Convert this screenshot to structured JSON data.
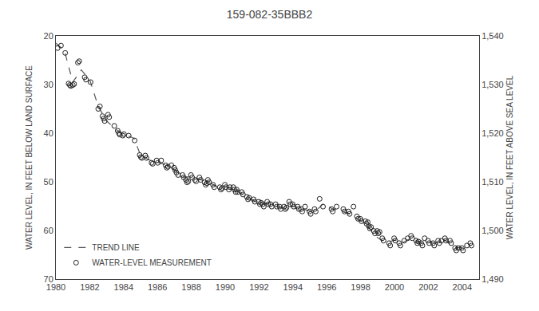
{
  "chart_data": {
    "type": "scatter",
    "title": "159-082-35BBB2",
    "ylabel": "WATER LEVEL, IN FEET BELOW LAND SURFACE",
    "y2label": "WATER LEVEL, IN FEET ABOVE SEA LEVEL",
    "xlim": [
      1980,
      2005
    ],
    "xticks": [
      1980,
      1982,
      1984,
      1986,
      1988,
      1990,
      1992,
      1994,
      1996,
      1998,
      2000,
      2002,
      2004
    ],
    "ylim": [
      70,
      20
    ],
    "yticks": [
      20,
      30,
      40,
      50,
      60,
      70
    ],
    "y2lim": [
      1490,
      1540
    ],
    "y2ticks": [
      {
        "value": 1540,
        "label": "1,540"
      },
      {
        "value": 1530,
        "label": "1,530"
      },
      {
        "value": 1520,
        "label": "1,520"
      },
      {
        "value": 1510,
        "label": "1,510"
      },
      {
        "value": 1500,
        "label": "1,500"
      },
      {
        "value": 1490,
        "label": "1,490"
      }
    ],
    "grid": false,
    "legend": "lower left",
    "series": [
      {
        "name": "TREND LINE",
        "type": "line",
        "line_style": "dashed",
        "color": "#555555",
        "x": [
          1980.0,
          1980.5,
          1981.0,
          1981.5,
          1982.0,
          1982.5,
          1983.0,
          1983.5,
          1983.8,
          1984.2,
          1984.6,
          1985.0,
          1985.5,
          1986.0,
          1986.5,
          1987.0,
          1987.5,
          1988.0,
          1988.5,
          1989.0,
          1989.5,
          1990.0,
          1990.5,
          1991.0,
          1991.5,
          1992.0,
          1992.5,
          1993.0,
          1993.5,
          1994.0,
          1994.5,
          1995.0,
          1995.5,
          1995.8,
          1996.3,
          1996.8,
          1997.3,
          1997.7,
          1998.0,
          1998.5,
          1999.0,
          1999.5,
          2000.0,
          2000.5,
          2001.0,
          2001.5,
          2002.0,
          2002.5,
          2003.0,
          2003.5,
          2004.0,
          2004.5
        ],
        "values": [
          21.5,
          23.0,
          29.5,
          27.0,
          29.0,
          34.5,
          37.5,
          39.0,
          40.0,
          40.5,
          41.0,
          44.5,
          45.5,
          46.0,
          46.5,
          47.5,
          49.0,
          49.0,
          49.5,
          50.0,
          51.0,
          51.0,
          51.5,
          52.5,
          53.5,
          54.5,
          54.5,
          55.0,
          55.5,
          55.0,
          55.5,
          56.0,
          55.5,
          54.5,
          55.5,
          56.0,
          56.5,
          57.5,
          58.0,
          59.5,
          61.5,
          62.5,
          62.0,
          62.5,
          61.5,
          62.5,
          62.5,
          62.5,
          62.0,
          63.5,
          63.5,
          63.0
        ]
      },
      {
        "name": "WATER-LEVEL MEASUREMENT",
        "type": "scatter",
        "marker": "open_circle",
        "color": "#222222",
        "x": [
          1980.1,
          1980.3,
          1980.55,
          1980.75,
          1980.82,
          1980.88,
          1981.0,
          1981.08,
          1981.3,
          1981.38,
          1981.7,
          1981.78,
          1982.05,
          1982.5,
          1982.6,
          1982.75,
          1982.82,
          1982.88,
          1983.08,
          1983.15,
          1983.45,
          1983.65,
          1983.72,
          1983.78,
          1983.95,
          1984.02,
          1984.3,
          1984.65,
          1984.95,
          1985.02,
          1985.08,
          1985.28,
          1985.35,
          1985.65,
          1985.72,
          1985.95,
          1986.02,
          1986.22,
          1986.48,
          1986.55,
          1986.62,
          1986.82,
          1986.98,
          1987.05,
          1987.12,
          1987.22,
          1987.48,
          1987.55,
          1987.68,
          1987.75,
          1987.82,
          1987.98,
          1988.05,
          1988.22,
          1988.28,
          1988.48,
          1988.55,
          1988.78,
          1988.85,
          1988.92,
          1988.98,
          1989.05,
          1989.28,
          1989.35,
          1989.68,
          1989.75,
          1989.82,
          1989.98,
          1990.05,
          1990.22,
          1990.28,
          1990.48,
          1990.55,
          1990.62,
          1990.68,
          1990.75,
          1990.98,
          1991.05,
          1991.28,
          1991.35,
          1991.42,
          1991.68,
          1991.75,
          1991.98,
          1992.05,
          1992.12,
          1992.22,
          1992.28,
          1992.48,
          1992.55,
          1992.68,
          1992.75,
          1992.98,
          1993.05,
          1993.22,
          1993.28,
          1993.48,
          1993.55,
          1993.62,
          1993.78,
          1993.85,
          1993.98,
          1994.05,
          1994.28,
          1994.35,
          1994.48,
          1994.55,
          1994.72,
          1994.98,
          1995.05,
          1995.28,
          1995.35,
          1995.58,
          1995.78,
          1996.28,
          1996.35,
          1996.58,
          1996.98,
          1997.05,
          1997.28,
          1997.35,
          1997.58,
          1997.78,
          1997.85,
          1997.98,
          1998.05,
          1998.28,
          1998.35,
          1998.42,
          1998.48,
          1998.55,
          1998.62,
          1998.78,
          1998.85,
          1998.98,
          1999.05,
          1999.12,
          1999.28,
          1999.35,
          1999.68,
          1999.75,
          1999.98,
          2000.05,
          2000.28,
          2000.35,
          2000.58,
          2000.78,
          2000.98,
          2001.05,
          2001.28,
          2001.35,
          2001.42,
          2001.58,
          2001.65,
          2001.78,
          2001.98,
          2002.05,
          2002.28,
          2002.35,
          2002.58,
          2002.65,
          2002.78,
          2002.98,
          2003.05,
          2003.28,
          2003.35,
          2003.58,
          2003.65,
          2003.78,
          2003.98,
          2004.05,
          2004.28,
          2004.48,
          2004.55
        ],
        "values": [
          22.5,
          22.0,
          23.5,
          29.8,
          30.1,
          30.3,
          30.1,
          29.9,
          25.5,
          25.2,
          28.5,
          29.0,
          29.5,
          35.0,
          34.5,
          36.5,
          37.0,
          37.5,
          36.2,
          36.7,
          38.5,
          39.5,
          40.0,
          40.3,
          40.5,
          40.2,
          40.5,
          41.5,
          44.5,
          44.9,
          45.1,
          44.6,
          45.1,
          46.1,
          46.3,
          45.6,
          46.1,
          45.6,
          46.6,
          47.1,
          46.9,
          46.6,
          47.1,
          47.6,
          48.1,
          48.6,
          48.6,
          49.1,
          49.6,
          50.1,
          49.9,
          48.6,
          49.1,
          49.6,
          49.9,
          49.1,
          49.6,
          50.1,
          50.6,
          50.3,
          49.6,
          50.1,
          50.6,
          51.1,
          51.1,
          51.6,
          51.3,
          50.6,
          51.1,
          51.6,
          51.1,
          51.1,
          51.6,
          52.1,
          51.6,
          52.1,
          52.1,
          52.6,
          53.1,
          53.6,
          53.3,
          53.6,
          54.1,
          54.1,
          54.6,
          54.3,
          54.6,
          55.1,
          54.1,
          54.6,
          54.6,
          55.1,
          54.6,
          55.1,
          55.1,
          55.6,
          55.1,
          55.6,
          55.3,
          54.1,
          54.6,
          54.6,
          55.1,
          55.1,
          55.6,
          55.6,
          56.1,
          55.1,
          56.1,
          56.6,
          55.6,
          56.1,
          53.5,
          55.1,
          55.6,
          56.1,
          55.1,
          55.6,
          56.1,
          56.1,
          56.6,
          55.1,
          57.1,
          57.6,
          57.6,
          58.1,
          58.1,
          58.6,
          58.3,
          59.1,
          59.6,
          59.3,
          60.1,
          60.6,
          60.1,
          60.6,
          60.3,
          61.6,
          62.1,
          62.6,
          63.1,
          61.6,
          62.1,
          62.6,
          63.1,
          62.1,
          61.6,
          61.1,
          61.6,
          62.1,
          62.6,
          62.3,
          62.6,
          63.1,
          61.6,
          62.1,
          62.6,
          62.6,
          63.1,
          62.1,
          62.6,
          62.1,
          61.6,
          62.1,
          62.1,
          62.6,
          63.6,
          64.1,
          63.6,
          63.6,
          64.1,
          63.1,
          62.6,
          63.1
        ]
      }
    ]
  }
}
